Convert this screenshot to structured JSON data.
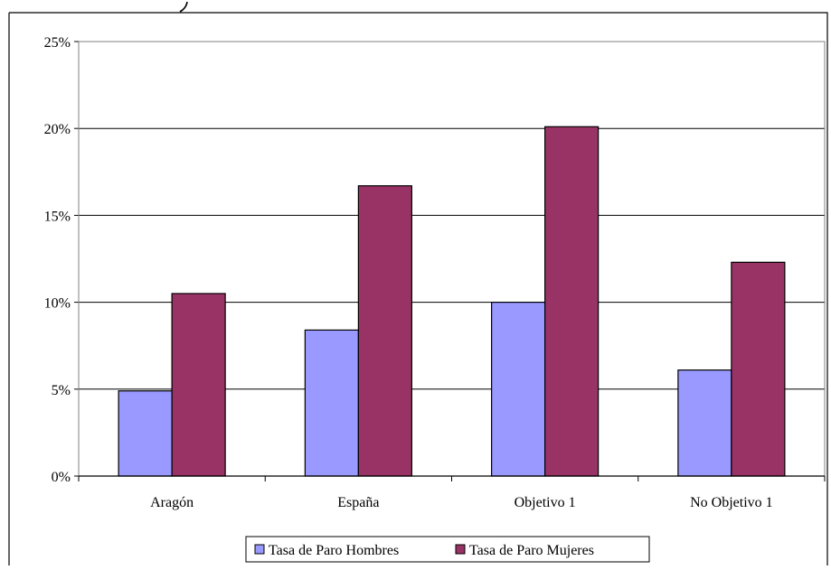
{
  "chart_data": {
    "type": "bar",
    "categories": [
      "Aragón",
      "España",
      "Objetivo 1",
      "No Objetivo 1"
    ],
    "series": [
      {
        "name": "Tasa de Paro Hombres",
        "color": "#9999FF",
        "values": [
          4.9,
          8.4,
          10.0,
          6.1
        ]
      },
      {
        "name": "Tasa de Paro Mujeres",
        "color": "#993366",
        "values": [
          10.5,
          16.7,
          20.1,
          12.3
        ]
      }
    ],
    "title": "",
    "xlabel": "",
    "ylabel": "",
    "ylim": [
      0,
      25
    ],
    "yticks": [
      0,
      5,
      10,
      15,
      20,
      25
    ],
    "ytick_labels": [
      "0%",
      "5%",
      "10%",
      "15%",
      "20%",
      "25%"
    ],
    "grid": true,
    "legend_position": "bottom"
  },
  "colors": {
    "gridline": "#000000",
    "plot_border": "#808080",
    "bar_outline": "#000000"
  }
}
